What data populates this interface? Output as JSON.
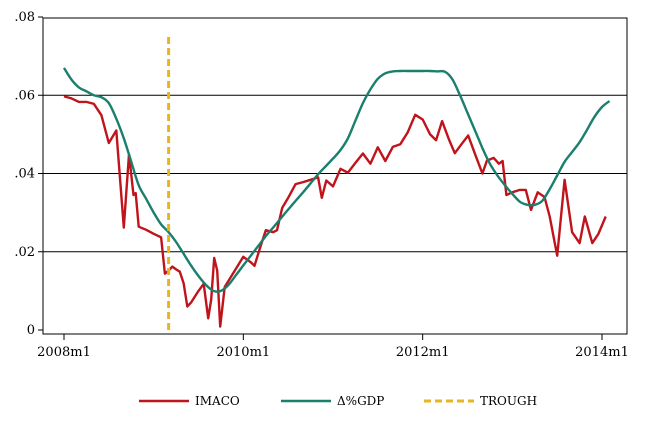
{
  "chart_data": {
    "type": "line",
    "title": "",
    "xlabel": "",
    "ylabel": "",
    "x_ticks": [
      {
        "label": "2008m1",
        "value": 0
      },
      {
        "label": "2010m1",
        "value": 24
      },
      {
        "label": "2012m1",
        "value": 48
      },
      {
        "label": "2014m1",
        "value": 72
      }
    ],
    "y_ticks": [
      {
        "label": "0",
        "value": 0
      },
      {
        "label": ".02",
        "value": 0.02
      },
      {
        "label": ".04",
        "value": 0.04
      },
      {
        "label": ".06",
        "value": 0.06
      },
      {
        "label": ".08",
        "value": 0.08
      }
    ],
    "xlim": [
      0,
      74
    ],
    "ylim": [
      0,
      0.08
    ],
    "grid": "horizontal",
    "legend_position": "bottom",
    "series": [
      {
        "name": "IMACO",
        "color": "#c0141c",
        "style": "solid",
        "points": [
          [
            0,
            0.0597
          ],
          [
            1,
            0.0592
          ],
          [
            2,
            0.0583
          ],
          [
            3,
            0.0583
          ],
          [
            4,
            0.0578
          ],
          [
            5,
            0.0549
          ],
          [
            6,
            0.0478
          ],
          [
            7,
            0.051
          ],
          [
            8,
            0.0262
          ],
          [
            8.7,
            0.0449
          ],
          [
            9.3,
            0.0345
          ],
          [
            9.6,
            0.035
          ],
          [
            10,
            0.0264
          ],
          [
            11,
            0.0256
          ],
          [
            12,
            0.0246
          ],
          [
            13,
            0.0237
          ],
          [
            13.5,
            0.0144
          ],
          [
            14,
            0.0152
          ],
          [
            14.5,
            0.0162
          ],
          [
            15,
            0.0155
          ],
          [
            15.5,
            0.0149
          ],
          [
            16,
            0.012
          ],
          [
            16.5,
            0.006
          ],
          [
            17,
            0.007
          ],
          [
            18,
            0.01
          ],
          [
            18.7,
            0.0118
          ],
          [
            19.3,
            0.003
          ],
          [
            19.7,
            0.0078
          ],
          [
            20.1,
            0.0184
          ],
          [
            20.5,
            0.0152
          ],
          [
            20.9,
            0.0009
          ],
          [
            21.5,
            0.011
          ],
          [
            24,
            0.0187
          ],
          [
            25,
            0.0173
          ],
          [
            25.5,
            0.0164
          ],
          [
            26.2,
            0.0208
          ],
          [
            27,
            0.0255
          ],
          [
            28,
            0.025
          ],
          [
            28.5,
            0.0255
          ],
          [
            29.2,
            0.0312
          ],
          [
            30,
            0.0338
          ],
          [
            31,
            0.0373
          ],
          [
            32,
            0.0378
          ],
          [
            33,
            0.0384
          ],
          [
            34,
            0.039
          ],
          [
            34.5,
            0.0338
          ],
          [
            35.1,
            0.0382
          ],
          [
            36,
            0.0367
          ],
          [
            37,
            0.0412
          ],
          [
            38,
            0.0402
          ],
          [
            39,
            0.0427
          ],
          [
            40,
            0.0451
          ],
          [
            41,
            0.0425
          ],
          [
            42,
            0.0467
          ],
          [
            43,
            0.0432
          ],
          [
            44,
            0.0468
          ],
          [
            45,
            0.0475
          ],
          [
            46,
            0.0505
          ],
          [
            47,
            0.055
          ],
          [
            48,
            0.0538
          ],
          [
            49,
            0.05
          ],
          [
            49.8,
            0.0485
          ],
          [
            50.6,
            0.0534
          ],
          [
            51.5,
            0.0488
          ],
          [
            52.3,
            0.0452
          ],
          [
            53.2,
            0.0475
          ],
          [
            54.1,
            0.0497
          ],
          [
            55,
            0.045
          ],
          [
            56,
            0.04
          ],
          [
            56.6,
            0.0433
          ],
          [
            57.5,
            0.044
          ],
          [
            58.2,
            0.0425
          ],
          [
            58.7,
            0.0432
          ],
          [
            59.2,
            0.0345
          ],
          [
            60,
            0.0352
          ],
          [
            61,
            0.0358
          ],
          [
            61.8,
            0.0358
          ],
          [
            62.5,
            0.0307
          ],
          [
            63.4,
            0.0352
          ],
          [
            64.3,
            0.034
          ],
          [
            65,
            0.029
          ],
          [
            66,
            0.019
          ],
          [
            67,
            0.0384
          ],
          [
            68,
            0.025
          ],
          [
            69,
            0.0222
          ],
          [
            69.7,
            0.029
          ],
          [
            70.7,
            0.0222
          ],
          [
            71.5,
            0.0245
          ],
          [
            72.5,
            0.029
          ]
        ]
      },
      {
        "name": "Δ%GDP",
        "color": "#1a7f6d",
        "style": "solid",
        "smooth": true,
        "points": [
          [
            0,
            0.067
          ],
          [
            1,
            0.064
          ],
          [
            2,
            0.062
          ],
          [
            3,
            0.061
          ],
          [
            4,
            0.06
          ],
          [
            5,
            0.0595
          ],
          [
            6,
            0.058
          ],
          [
            7,
            0.054
          ],
          [
            8,
            0.049
          ],
          [
            9,
            0.043
          ],
          [
            10,
            0.037
          ],
          [
            11,
            0.0335
          ],
          [
            12,
            0.03
          ],
          [
            13,
            0.027
          ],
          [
            14,
            0.025
          ],
          [
            15,
            0.0225
          ],
          [
            16,
            0.0195
          ],
          [
            17,
            0.0165
          ],
          [
            18,
            0.0138
          ],
          [
            19,
            0.0115
          ],
          [
            20,
            0.01
          ],
          [
            21,
            0.01
          ],
          [
            22,
            0.0115
          ],
          [
            23,
            0.014
          ],
          [
            24,
            0.0165
          ],
          [
            25,
            0.019
          ],
          [
            26,
            0.0215
          ],
          [
            27,
            0.024
          ],
          [
            28,
            0.0262
          ],
          [
            29,
            0.0285
          ],
          [
            30,
            0.0308
          ],
          [
            31,
            0.033
          ],
          [
            32,
            0.0352
          ],
          [
            33,
            0.0375
          ],
          [
            34,
            0.0398
          ],
          [
            35,
            0.0418
          ],
          [
            36,
            0.0438
          ],
          [
            37,
            0.046
          ],
          [
            38,
            0.049
          ],
          [
            39,
            0.0535
          ],
          [
            40,
            0.058
          ],
          [
            41,
            0.0615
          ],
          [
            42,
            0.0642
          ],
          [
            43,
            0.0656
          ],
          [
            44,
            0.0661
          ],
          [
            45,
            0.0662
          ],
          [
            46,
            0.0662
          ],
          [
            47,
            0.0662
          ],
          [
            48,
            0.0662
          ],
          [
            49,
            0.0662
          ],
          [
            50,
            0.0661
          ],
          [
            51,
            0.066
          ],
          [
            52,
            0.064
          ],
          [
            53,
            0.06
          ],
          [
            54,
            0.0555
          ],
          [
            55,
            0.051
          ],
          [
            56,
            0.0465
          ],
          [
            57,
            0.0425
          ],
          [
            58,
            0.0395
          ],
          [
            59,
            0.037
          ],
          [
            60,
            0.0348
          ],
          [
            61,
            0.0328
          ],
          [
            62,
            0.032
          ],
          [
            63,
            0.032
          ],
          [
            64,
            0.033
          ],
          [
            65,
            0.036
          ],
          [
            66,
            0.0395
          ],
          [
            67,
            0.043
          ],
          [
            68,
            0.0455
          ],
          [
            69,
            0.048
          ],
          [
            70,
            0.0512
          ],
          [
            71,
            0.0545
          ],
          [
            72,
            0.057
          ],
          [
            73,
            0.0585
          ]
        ]
      },
      {
        "name": "TROUGH",
        "color": "#e6b521",
        "style": "dashed",
        "points": [
          [
            14,
            0
          ],
          [
            14,
            0.075
          ]
        ]
      }
    ]
  }
}
